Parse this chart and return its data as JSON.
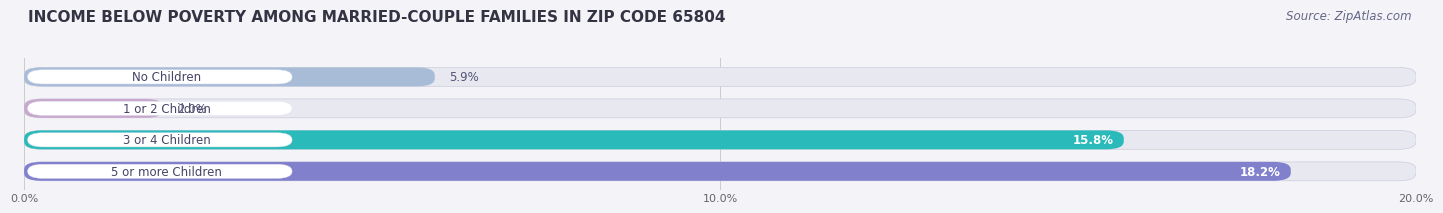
{
  "title": "INCOME BELOW POVERTY AMONG MARRIED-COUPLE FAMILIES IN ZIP CODE 65804",
  "source": "Source: ZipAtlas.com",
  "categories": [
    "No Children",
    "1 or 2 Children",
    "3 or 4 Children",
    "5 or more Children"
  ],
  "values": [
    5.9,
    2.0,
    15.8,
    18.2
  ],
  "bar_colors": [
    "#a8bcd8",
    "#c8a8cc",
    "#2ababa",
    "#8080cc"
  ],
  "value_colors": [
    "#555577",
    "#666688",
    "#ffffff",
    "#ffffff"
  ],
  "value_inside": [
    false,
    false,
    true,
    true
  ],
  "bg_color": "#f4f4f8",
  "bar_bg_color": "#e8e8f0",
  "label_pill_color": "#ffffff",
  "label_text_color": "#444466",
  "xlim": [
    0,
    20.0
  ],
  "xticks": [
    0.0,
    10.0,
    20.0
  ],
  "xticklabels": [
    "0.0%",
    "10.0%",
    "20.0%"
  ],
  "title_fontsize": 11,
  "source_fontsize": 8.5,
  "label_fontsize": 8.5,
  "value_fontsize": 8.5
}
